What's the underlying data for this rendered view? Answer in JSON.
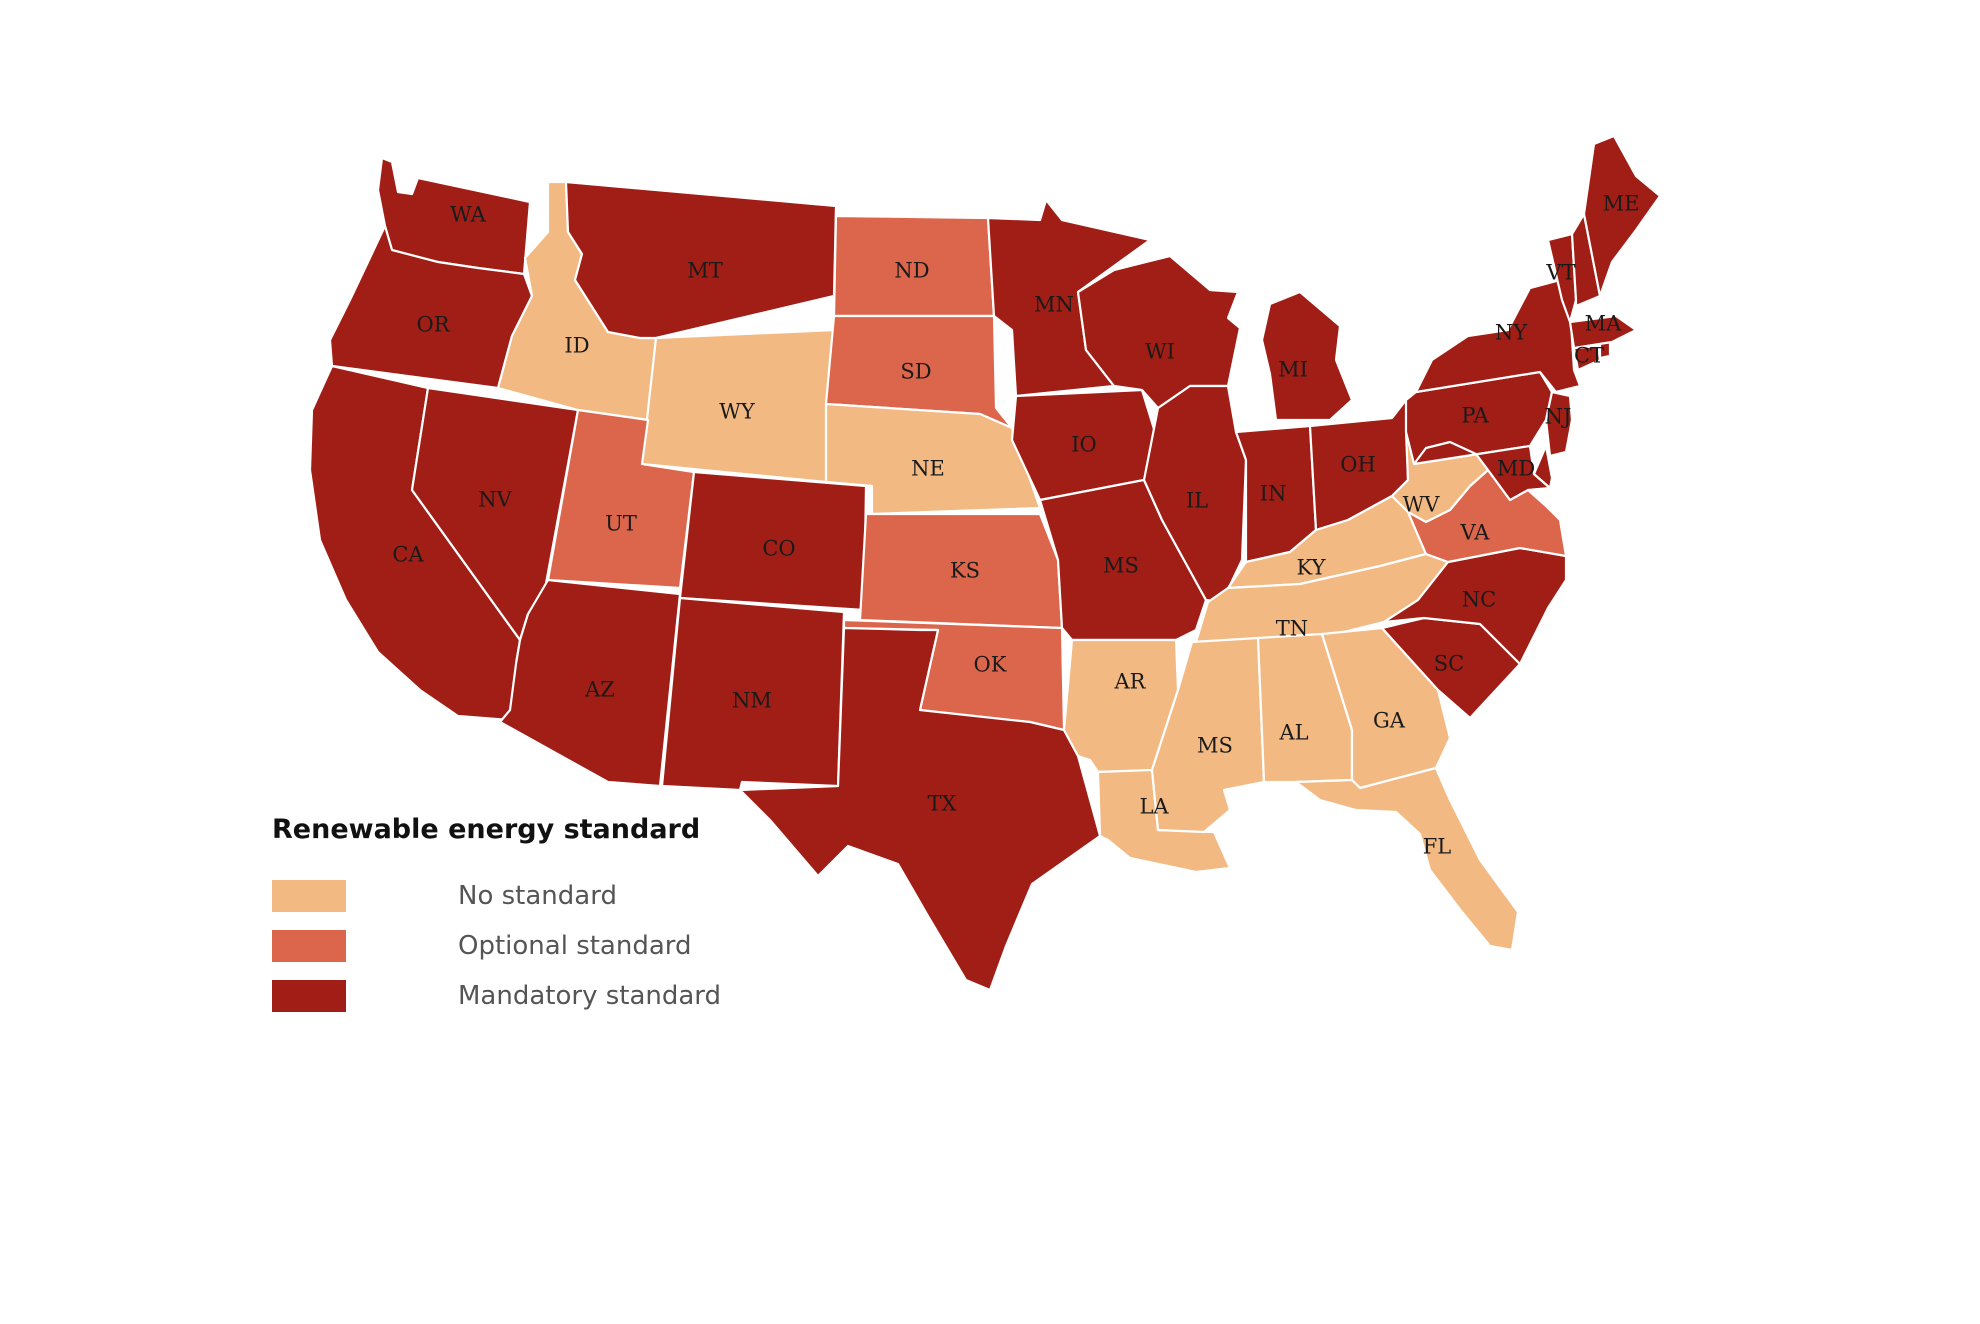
{
  "colors": {
    "none": "#f2b983",
    "optional": "#dc664b",
    "mandatory": "#a01e16"
  },
  "legend": {
    "title": "Renewable energy standard",
    "items": [
      {
        "key": "none",
        "label": "No standard"
      },
      {
        "key": "optional",
        "label": "Optional standard"
      },
      {
        "key": "mandatory",
        "label": "Mandatory standard"
      }
    ]
  },
  "states": {
    "WA": "mandatory",
    "OR": "mandatory",
    "CA": "mandatory",
    "NV": "mandatory",
    "ID": "none",
    "MT": "mandatory",
    "WY": "none",
    "UT": "optional",
    "AZ": "mandatory",
    "CO": "mandatory",
    "NM": "mandatory",
    "ND": "optional",
    "SD": "optional",
    "NE": "none",
    "KS": "optional",
    "OK": "optional",
    "TX": "mandatory",
    "MN": "mandatory",
    "IO": "mandatory",
    "MS_MO": "mandatory",
    "AR": "none",
    "LA": "none",
    "WI": "mandatory",
    "IL": "mandatory",
    "MI": "mandatory",
    "IN": "mandatory",
    "OH": "mandatory",
    "KY": "none",
    "TN": "none",
    "MS": "none",
    "AL": "none",
    "GA": "none",
    "FL": "none",
    "SC": "mandatory",
    "NC": "mandatory",
    "VA": "optional",
    "WV": "none",
    "PA": "mandatory",
    "NY": "mandatory",
    "NJ": "mandatory",
    "MD": "mandatory",
    "DE": "mandatory",
    "CT": "mandatory",
    "RI": "mandatory",
    "MA": "mandatory",
    "VT": "mandatory",
    "NH": "mandatory",
    "ME": "mandatory"
  },
  "labels": {
    "WA": "WA",
    "OR": "OR",
    "CA": "CA",
    "NV": "NV",
    "ID": "ID",
    "MT": "MT",
    "WY": "WY",
    "UT": "UT",
    "AZ": "AZ",
    "CO": "CO",
    "NM": "NM",
    "ND": "ND",
    "SD": "SD",
    "NE": "NE",
    "KS": "KS",
    "OK": "OK",
    "TX": "TX",
    "MN": "MN",
    "IO": "IO",
    "MS_MO": "MS",
    "AR": "AR",
    "LA": "LA",
    "WI": "WI",
    "IL": "IL",
    "MI": "MI",
    "IN": "IN",
    "OH": "OH",
    "KY": "KY",
    "TN": "TN",
    "MS": "MS",
    "AL": "AL",
    "GA": "GA",
    "FL": "FL",
    "SC": "SC",
    "NC": "NC",
    "VA": "VA",
    "WV": "WV",
    "PA": "PA",
    "NY": "NY",
    "NJ": "NJ",
    "MD": "MD",
    "CT": "CT",
    "MA": "MA",
    "VT": "VT",
    "ME": "ME"
  }
}
